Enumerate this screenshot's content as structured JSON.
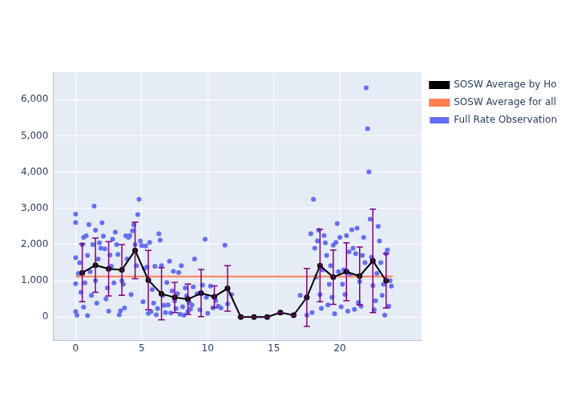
{
  "chart_data": {
    "type": "scatter",
    "xlim": [
      -1.7,
      26.2
    ],
    "xticks": [
      0,
      5,
      10,
      15,
      20
    ],
    "ylim": [
      -650,
      6760
    ],
    "yticks": [
      0,
      1000,
      2000,
      3000,
      4000,
      5000,
      6000
    ],
    "grid": true,
    "legend": "right",
    "series": [
      {
        "name": "Full Rate Observations in a Normal Point",
        "type": "scatter",
        "marker": "circle",
        "color": "#636efa",
        "x": [
          0,
          0,
          0,
          0,
          0,
          0.1,
          0.2,
          0.3,
          0.4,
          0.5,
          0.6,
          0.6,
          0.7,
          0.8,
          0.9,
          0.9,
          1.0,
          1.1,
          1.2,
          1.3,
          1.4,
          1.5,
          1.5,
          1.6,
          1.7,
          1.8,
          1.9,
          2.0,
          2.1,
          2.2,
          2.3,
          2.4,
          2.5,
          2.6,
          2.7,
          2.8,
          2.9,
          3.0,
          3.1,
          3.2,
          3.3,
          3.4,
          3.5,
          3.6,
          3.7,
          3.8,
          3.9,
          4.0,
          4.1,
          4.2,
          4.3,
          4.4,
          4.5,
          4.6,
          4.7,
          4.8,
          4.9,
          5.0,
          5.1,
          5.2,
          5.3,
          5.4,
          5.5,
          5.6,
          5.7,
          5.8,
          5.9,
          6.0,
          6.1,
          6.2,
          6.3,
          6.4,
          6.5,
          6.6,
          6.7,
          6.8,
          6.9,
          7.0,
          7.1,
          7.2,
          7.3,
          7.4,
          7.5,
          7.6,
          7.7,
          7.8,
          7.9,
          8.0,
          8.1,
          8.2,
          8.3,
          8.4,
          8.5,
          8.6,
          8.7,
          8.8,
          8.9,
          9.0,
          9.2,
          9.4,
          9.6,
          9.8,
          9.9,
          10.0,
          10.2,
          10.4,
          10.6,
          10.8,
          11.0,
          11.3,
          11.5,
          11.8,
          12.5,
          13.5,
          14.5,
          15.5,
          16.5,
          17.0,
          17.5,
          17.8,
          17.9,
          18.0,
          18.1,
          18.2,
          18.3,
          18.4,
          18.5,
          18.6,
          18.7,
          18.8,
          18.9,
          19.0,
          19.1,
          19.2,
          19.3,
          19.4,
          19.5,
          19.6,
          19.7,
          19.8,
          19.9,
          20.0,
          20.1,
          20.2,
          20.3,
          20.4,
          20.5,
          20.6,
          20.7,
          20.8,
          20.9,
          21.0,
          21.1,
          21.2,
          21.3,
          21.4,
          21.5,
          21.6,
          21.7,
          21.8,
          21.9,
          22.0,
          22.1,
          22.2,
          22.3,
          22.4,
          22.5,
          22.6,
          22.7,
          22.8,
          22.9,
          23.0,
          23.1,
          23.2,
          23.3,
          23.4,
          23.5,
          23.6,
          23.7,
          23.8,
          23.9
        ],
        "values": [
          2840,
          2610,
          1640,
          920,
          150,
          50,
          1200,
          1500,
          680,
          2000,
          2200,
          270,
          940,
          2240,
          1700,
          40,
          2550,
          1250,
          600,
          2000,
          3060,
          2400,
          1000,
          380,
          1600,
          2050,
          1900,
          2600,
          2230,
          1880,
          500,
          800,
          160,
          1710,
          1400,
          2150,
          940,
          2340,
          2000,
          1730,
          60,
          170,
          1000,
          900,
          250,
          2240,
          1600,
          2200,
          2250,
          620,
          2380,
          2540,
          2000,
          1420,
          2830,
          3250,
          2100,
          1970,
          420,
          1340,
          1960,
          1380,
          100,
          2060,
          150,
          760,
          380,
          1400,
          60,
          230,
          2300,
          2120,
          1420,
          600,
          320,
          120,
          950,
          330,
          1540,
          110,
          720,
          1260,
          450,
          230,
          640,
          1230,
          80,
          1420,
          280,
          50,
          800,
          580,
          150,
          400,
          220,
          330,
          830,
          1600,
          640,
          200,
          880,
          2150,
          540,
          100,
          850,
          250,
          450,
          300,
          250,
          1980,
          360,
          620,
          0,
          0,
          0,
          120,
          50,
          600,
          50,
          2300,
          120,
          3250,
          1900,
          1100,
          2100,
          2400,
          620,
          240,
          1300,
          2250,
          2050,
          1700,
          330,
          900,
          1420,
          540,
          1980,
          90,
          2060,
          2580,
          1250,
          2200,
          280,
          900,
          1300,
          620,
          2250,
          160,
          1800,
          1150,
          2410,
          1900,
          210,
          1750,
          2450,
          400,
          980,
          300,
          1700,
          2200,
          1500,
          6330,
          5200,
          4010,
          2700,
          1650,
          870,
          200,
          450,
          1200,
          2500,
          2100,
          1500,
          600,
          900,
          50,
          1750,
          1850,
          300,
          1000,
          850
        ]
      },
      {
        "name": "SOSW Average by Hour with STD",
        "type": "line",
        "marker": "circle",
        "color": "#000000",
        "x": [
          0.5,
          1.5,
          2.5,
          3.5,
          4.5,
          5.5,
          6.5,
          7.5,
          8.5,
          9.5,
          10.5,
          11.5,
          12.5,
          13.5,
          14.5,
          15.5,
          16.5,
          17.5,
          18.5,
          19.5,
          20.5,
          21.5,
          22.5,
          23.5
        ],
        "values": [
          1220,
          1430,
          1330,
          1300,
          1840,
          1020,
          640,
          540,
          490,
          660,
          560,
          790,
          0,
          0,
          0,
          120,
          50,
          540,
          1420,
          1100,
          1250,
          1130,
          1550,
          1000
        ],
        "errors": [
          800,
          750,
          750,
          700,
          780,
          820,
          720,
          420,
          420,
          650,
          300,
          630,
          0,
          0,
          0,
          0,
          0,
          800,
          1000,
          750,
          800,
          800,
          1430,
          750
        ]
      },
      {
        "name": "SOSW Average for all Hours",
        "type": "line",
        "color": "#ff7f50",
        "x": [
          0,
          24
        ],
        "values": [
          1120,
          1120
        ]
      }
    ]
  }
}
